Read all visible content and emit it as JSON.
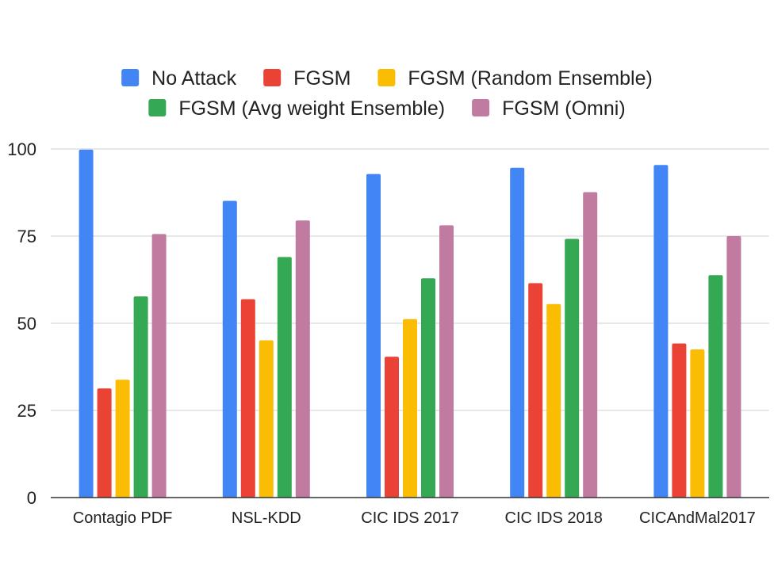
{
  "chart_data": {
    "type": "bar",
    "title": "",
    "xlabel": "",
    "ylabel": "",
    "categories": [
      "Contagio PDF",
      "NSL-KDD",
      "CIC IDS 2017",
      "CIC IDS 2018",
      "CICAndMal2017"
    ],
    "ylim": [
      0,
      100
    ],
    "yticks": [
      "0",
      "25",
      "50",
      "75",
      "100"
    ],
    "grid": true,
    "legend_position": "top",
    "series": [
      {
        "name": "No Attack",
        "color": "#4285f4",
        "values": [
          99.8,
          85.1,
          92.8,
          94.6,
          95.4
        ]
      },
      {
        "name": "FGSM",
        "color": "#ea4335",
        "values": [
          31.3,
          56.9,
          40.4,
          61.5,
          44.2
        ]
      },
      {
        "name": "FGSM (Random Ensemble)",
        "color": "#fbbc04",
        "values": [
          33.8,
          45.1,
          51.2,
          55.5,
          42.5
        ]
      },
      {
        "name": "FGSM (Avg weight Ensemble)",
        "color": "#34a853",
        "values": [
          57.7,
          69.0,
          62.9,
          74.2,
          63.8
        ]
      },
      {
        "name": "FGSM (Omni)",
        "color": "#c27ba0",
        "values": [
          75.6,
          79.5,
          78.1,
          87.6,
          75.0
        ]
      }
    ]
  }
}
